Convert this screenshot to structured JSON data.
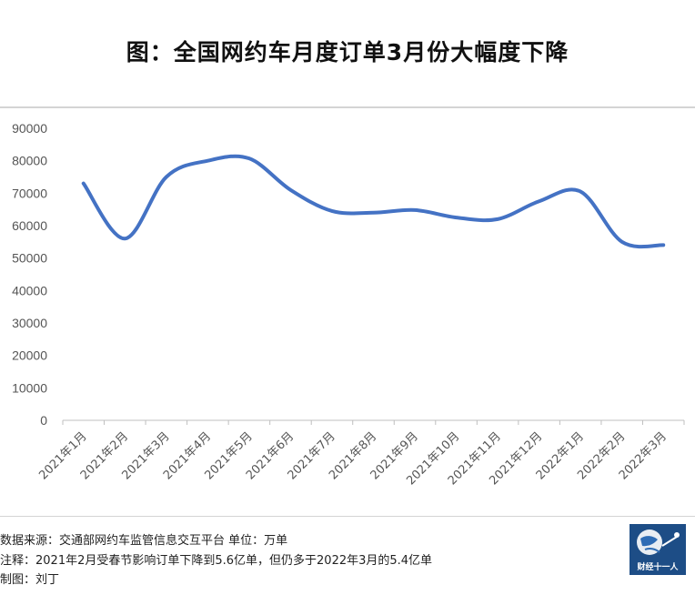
{
  "title": "图：全国网约车月度订单3月份大幅度下降",
  "chart_data": {
    "type": "line",
    "categories": [
      "2021年1月",
      "2021年2月",
      "2021年3月",
      "2021年4月",
      "2021年5月",
      "2021年6月",
      "2021年7月",
      "2021年8月",
      "2021年9月",
      "2021年10月",
      "2021年11月",
      "2021年12月",
      "2022年1月",
      "2022年2月",
      "2022年3月"
    ],
    "series": [
      {
        "values": [
          73000,
          56000,
          75000,
          80000,
          80700,
          71000,
          64500,
          64000,
          64800,
          62500,
          62000,
          67500,
          70500,
          55000,
          54000
        ]
      }
    ],
    "ylim": [
      0,
      90000
    ],
    "yticks": [
      0,
      10000,
      20000,
      30000,
      40000,
      50000,
      60000,
      70000,
      80000,
      90000
    ],
    "grid": false,
    "line_color": "#4472c4"
  },
  "footer": {
    "source": "数据来源：交通部网约车监管信息交互平台   单位：万单",
    "note": "注释：2021年2月受春节影响订单下降到5.6亿单，但仍多于2022年3月的5.4亿单",
    "author": "制图：刘丁"
  },
  "logo": {
    "text": "财经十一人",
    "icon": "globe-logo-icon"
  }
}
